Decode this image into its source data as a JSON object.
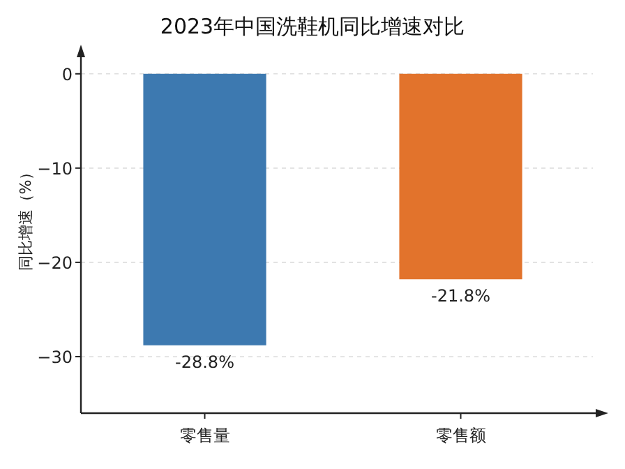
{
  "chart_data": {
    "type": "bar",
    "title": "2023年中国洗鞋机同比增速对比",
    "ylabel": "同比增速（%）",
    "categories": [
      "零售量",
      "零售额"
    ],
    "values": [
      -28.8,
      -21.8
    ],
    "colors": [
      "#3d79b0",
      "#e2732c"
    ],
    "value_labels": [
      "-28.8%",
      "-21.8%"
    ],
    "ylim": [
      -36,
      2.5
    ],
    "yticks": [
      0,
      -10,
      -20,
      -30
    ],
    "grid": "y"
  }
}
